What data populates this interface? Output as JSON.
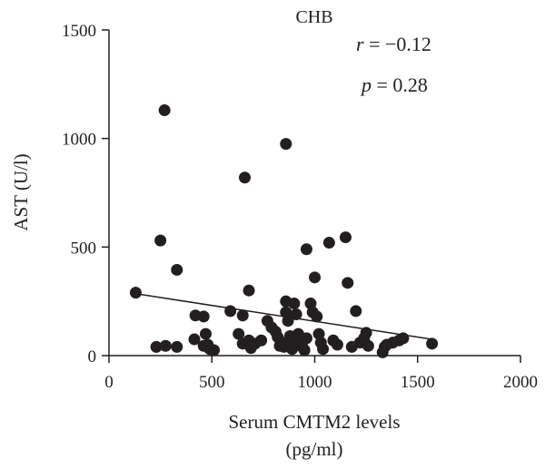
{
  "chart_data": {
    "type": "scatter",
    "title": "CHB",
    "xlabel": "Serum CMTM2 levels",
    "xlabel_unit": "(pg/ml)",
    "ylabel": "AST (U/l)",
    "xlim": [
      0,
      2000
    ],
    "ylim": [
      0,
      1500
    ],
    "xticks": [
      0,
      500,
      1000,
      1500,
      2000
    ],
    "yticks": [
      0,
      500,
      1000,
      1500
    ],
    "xtick_labels": [
      "0",
      "500",
      "1000",
      "1500",
      "2000"
    ],
    "ytick_labels": [
      "0",
      "500",
      "1000",
      "1500"
    ],
    "grid": false,
    "legend": "none",
    "annotations": {
      "r_symbol": "r",
      "r_value": " = −0.12",
      "p_symbol": "p",
      "p_value": " = 0.28"
    },
    "trend_line": {
      "x": [
        130,
        1570
      ],
      "y": [
        285,
        75
      ]
    },
    "points": [
      [
        130,
        290
      ],
      [
        230,
        40
      ],
      [
        250,
        530
      ],
      [
        270,
        1130
      ],
      [
        275,
        45
      ],
      [
        330,
        395
      ],
      [
        330,
        40
      ],
      [
        420,
        185
      ],
      [
        415,
        75
      ],
      [
        460,
        180
      ],
      [
        460,
        45
      ],
      [
        470,
        100
      ],
      [
        480,
        50
      ],
      [
        490,
        30
      ],
      [
        510,
        25
      ],
      [
        590,
        205
      ],
      [
        630,
        100
      ],
      [
        650,
        185
      ],
      [
        650,
        55
      ],
      [
        660,
        820
      ],
      [
        680,
        300
      ],
      [
        680,
        70
      ],
      [
        690,
        35
      ],
      [
        710,
        55
      ],
      [
        740,
        70
      ],
      [
        770,
        160
      ],
      [
        790,
        130
      ],
      [
        810,
        110
      ],
      [
        820,
        85
      ],
      [
        830,
        45
      ],
      [
        840,
        60
      ],
      [
        850,
        40
      ],
      [
        860,
        975
      ],
      [
        860,
        250
      ],
      [
        860,
        200
      ],
      [
        870,
        160
      ],
      [
        880,
        90
      ],
      [
        890,
        30
      ],
      [
        890,
        60
      ],
      [
        900,
        240
      ],
      [
        910,
        190
      ],
      [
        920,
        100
      ],
      [
        930,
        60
      ],
      [
        940,
        40
      ],
      [
        950,
        25
      ],
      [
        960,
        80
      ],
      [
        960,
        490
      ],
      [
        980,
        240
      ],
      [
        990,
        200
      ],
      [
        1000,
        360
      ],
      [
        1010,
        180
      ],
      [
        1020,
        100
      ],
      [
        1030,
        60
      ],
      [
        1040,
        30
      ],
      [
        1070,
        520
      ],
      [
        1090,
        70
      ],
      [
        1110,
        50
      ],
      [
        1150,
        545
      ],
      [
        1160,
        335
      ],
      [
        1180,
        40
      ],
      [
        1200,
        205
      ],
      [
        1220,
        60
      ],
      [
        1240,
        80
      ],
      [
        1250,
        105
      ],
      [
        1260,
        45
      ],
      [
        1330,
        15
      ],
      [
        1340,
        40
      ],
      [
        1350,
        50
      ],
      [
        1380,
        60
      ],
      [
        1410,
        70
      ],
      [
        1430,
        80
      ],
      [
        1570,
        55
      ]
    ]
  }
}
